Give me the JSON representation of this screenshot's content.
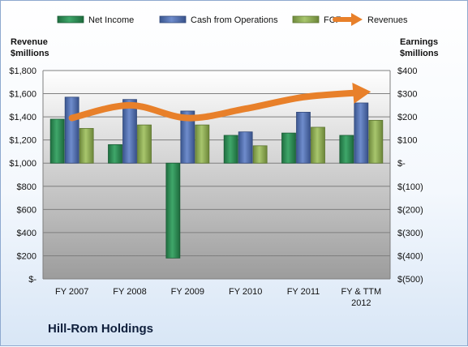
{
  "chart_data": {
    "type": "bar",
    "title": "Hill-Rom Holdings",
    "categories": [
      "FY 2007",
      "FY 2008",
      "FY 2009",
      "FY 2010",
      "FY 2011",
      "FY & TTM 2012"
    ],
    "left_axis": {
      "label": "Revenue $millions",
      "label_lines": [
        "Revenue",
        "$millions"
      ],
      "min": 0,
      "max": 1800,
      "step": 200,
      "tick_labels": [
        "$-",
        "$200",
        "$400",
        "$600",
        "$800",
        "$1,000",
        "$1,200",
        "$1,400",
        "$1,600",
        "$1,800"
      ]
    },
    "right_axis": {
      "label": "Earnings $millions",
      "label_lines": [
        "Earnings",
        "$millions"
      ],
      "min": -500,
      "max": 400,
      "step": 100,
      "tick_labels": [
        "$(500)",
        "$(400)",
        "$(300)",
        "$(200)",
        "$(100)",
        "$-",
        "$100",
        "$200",
        "$300",
        "$400"
      ]
    },
    "series": [
      {
        "name": "Net Income",
        "kind": "bar",
        "axis": "right",
        "color": "#2e8b57",
        "values": [
          190,
          80,
          -410,
          120,
          130,
          120
        ]
      },
      {
        "name": "Cash from Operations",
        "kind": "bar",
        "axis": "right",
        "color": "#4f6fb3",
        "values": [
          285,
          275,
          225,
          135,
          220,
          260
        ]
      },
      {
        "name": "FCF",
        "kind": "bar",
        "axis": "right",
        "color": "#8fad57",
        "values": [
          150,
          165,
          165,
          75,
          155,
          185
        ]
      },
      {
        "name": "Revenues",
        "kind": "arrow-line",
        "axis": "left",
        "color": "#e8802a",
        "values": [
          1390,
          1500,
          1390,
          1470,
          1570,
          1610
        ]
      }
    ],
    "legend_position": "top",
    "grid": true
  }
}
